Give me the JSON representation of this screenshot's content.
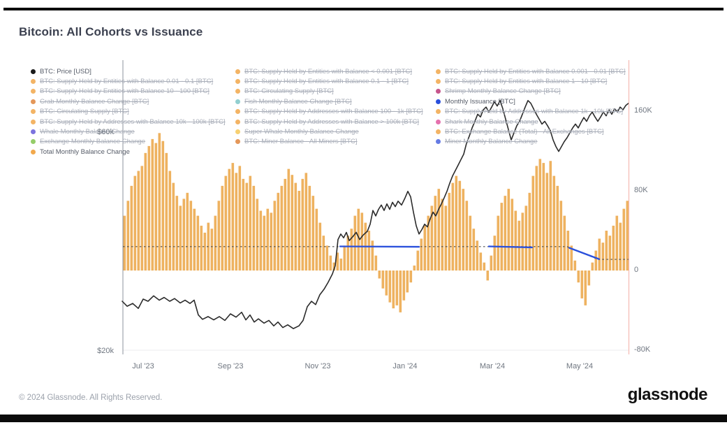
{
  "header": {
    "title": "Bitcoin: All Cohorts vs Issuance"
  },
  "footer": {
    "copyright": "© 2024 Glassnode. All Rights Reserved.",
    "brand": "glassnode"
  },
  "legend": {
    "columns": [
      {
        "items": [
          {
            "label": "BTC: Price [USD]",
            "color": "#1b1b1b",
            "active": true
          },
          {
            "label": "BTC: Supply Held by Entities with Balance 0.01 - 0.1 [BTC]",
            "color": "#f0a13e",
            "active": false
          },
          {
            "label": "BTC: Supply Held by Entities with Balance 10 - 100 [BTC]",
            "color": "#f0a13e",
            "active": false
          },
          {
            "label": "Crab Monthly Balance Change [BTC]",
            "color": "#dd7d2f",
            "active": false
          },
          {
            "label": "BTC: Circulating Supply [BTC]",
            "color": "#f0a13e",
            "active": false
          },
          {
            "label": "BTC: Supply Held by Addresses with Balance 10k - 100k [BTC]",
            "color": "#f0a13e",
            "active": false
          },
          {
            "label": "Whale Monthly Balance Change",
            "color": "#5b50d6",
            "active": false
          },
          {
            "label": "Exchange Monthly Balance Change",
            "color": "#7bc043",
            "active": false
          },
          {
            "label": "Total Monthly Balance Change",
            "color": "#f2a94d",
            "active": true
          }
        ]
      },
      {
        "items": [
          {
            "label": "BTC: Supply Held by Entities with Balance < 0.001 [BTC]",
            "color": "#f0a13e",
            "active": false
          },
          {
            "label": "BTC: Supply Held by Entities with Balance 0.1 - 1 [BTC]",
            "color": "#f0a13e",
            "active": false
          },
          {
            "label": "BTC: Circulating Supply [BTC]",
            "color": "#f0a13e",
            "active": false
          },
          {
            "label": "Fish Monthly Balance Change [BTC]",
            "color": "#77c3c4",
            "active": false
          },
          {
            "label": "BTC: Supply Held by Addresses with Balance 100 - 1k [BTC]",
            "color": "#f0a13e",
            "active": false
          },
          {
            "label": "BTC: Supply Held by Addresses with Balance > 100k [BTC]",
            "color": "#f0a13e",
            "active": false
          },
          {
            "label": "Super Whale Monthly Balance Change",
            "color": "#f5c44f",
            "active": false
          },
          {
            "label": "BTC: Miner Balance - All Miners [BTC]",
            "color": "#dd7d2f",
            "active": false
          }
        ]
      },
      {
        "items": [
          {
            "label": "BTC: Supply Held by Entities with Balance 0.001 - 0.01 [BTC]",
            "color": "#f0a13e",
            "active": false
          },
          {
            "label": "BTC: Supply Held by Entities with Balance 1 - 10 [BTC]",
            "color": "#f0a13e",
            "active": false
          },
          {
            "label": "Shrimp Monthly Balance Change [BTC]",
            "color": "#b82a6f",
            "active": false
          },
          {
            "label": "Monthly Issuance [BTC]",
            "color": "#2a50dc",
            "active": true
          },
          {
            "label": "BTC: Supply Held by Addresses with Balance 1k - 10k [BTC]",
            "color": "#f0a13e",
            "active": false
          },
          {
            "label": "Shark Monthly Balance Change",
            "color": "#df4d9a",
            "active": false
          },
          {
            "label": "BTC: Exchange Balance (Total) - All Exchanges [BTC]",
            "color": "#f0a13e",
            "active": false
          },
          {
            "label": "Miner Monthly Balance Change",
            "color": "#3f5add",
            "active": false
          }
        ]
      }
    ]
  },
  "chart_data": {
    "type": "mixed",
    "title": "Bitcoin: All Cohorts vs Issuance",
    "x_axis": {
      "tick_labels": [
        "Jul '23",
        "Sep '23",
        "Nov '23",
        "Jan '24",
        "Mar '24",
        "May '24"
      ],
      "grid": false
    },
    "left_axis": {
      "scale": "linear",
      "tick_labels": [
        "$60k",
        "$20k"
      ],
      "tick_values_k_usd": [
        60,
        20
      ]
    },
    "right_axis": {
      "tick_labels": [
        "160K",
        "80K",
        "0",
        "-80K"
      ],
      "tick_values_k_btc": [
        160,
        80,
        0,
        -80
      ]
    },
    "legend_position": "top-overlay",
    "series": [
      {
        "name": "Total Monthly Balance Change",
        "type": "bar",
        "axis": "right",
        "unit": "K BTC",
        "color": "#ecaa4f",
        "values": [
          55,
          70,
          85,
          95,
          100,
          105,
          118,
          125,
          132,
          128,
          138,
          130,
          118,
          100,
          88,
          75,
          65,
          72,
          78,
          70,
          62,
          55,
          45,
          38,
          48,
          42,
          55,
          70,
          85,
          95,
          102,
          108,
          98,
          105,
          92,
          88,
          95,
          85,
          72,
          60,
          55,
          62,
          58,
          70,
          78,
          85,
          92,
          102,
          96,
          88,
          80,
          92,
          98,
          85,
          75,
          62,
          48,
          35,
          25,
          15,
          8,
          18,
          12,
          25,
          35,
          42,
          55,
          62,
          58,
          48,
          40,
          30,
          15,
          -8,
          -18,
          -25,
          -32,
          -38,
          -35,
          -42,
          -30,
          -22,
          -12,
          5,
          20,
          32,
          45,
          55,
          65,
          75,
          82,
          72,
          65,
          78,
          88,
          95,
          90,
          82,
          70,
          55,
          42,
          30,
          18,
          8,
          -10,
          15,
          35,
          55,
          68,
          75,
          82,
          72,
          60,
          50,
          58,
          65,
          78,
          95,
          105,
          112,
          108,
          98,
          110,
          95,
          85,
          70,
          55,
          40,
          25,
          10,
          -12,
          -28,
          -35,
          -15,
          8,
          20,
          32,
          28,
          40,
          35,
          45,
          55,
          48,
          62,
          70
        ]
      },
      {
        "name": "BTC: Price [USD]",
        "type": "line",
        "axis": "left",
        "unit": "K USD",
        "color": "#2b2b2b",
        "points": [
          [
            175,
            29.2
          ],
          [
            182,
            28.3
          ],
          [
            190,
            28.8
          ],
          [
            198,
            27.9
          ],
          [
            205,
            29.6
          ],
          [
            212,
            29.2
          ],
          [
            220,
            30.2
          ],
          [
            228,
            29.4
          ],
          [
            235,
            29.9
          ],
          [
            243,
            29.2
          ],
          [
            250,
            29.7
          ],
          [
            258,
            28.9
          ],
          [
            265,
            29.4
          ],
          [
            272,
            28.8
          ],
          [
            278,
            29.4
          ],
          [
            284,
            26.7
          ],
          [
            290,
            25.9
          ],
          [
            298,
            26.4
          ],
          [
            306,
            25.8
          ],
          [
            314,
            26.4
          ],
          [
            322,
            25.7
          ],
          [
            330,
            26.9
          ],
          [
            338,
            26.3
          ],
          [
            346,
            27.2
          ],
          [
            352,
            25.8
          ],
          [
            358,
            26.7
          ],
          [
            364,
            25.4
          ],
          [
            370,
            26.0
          ],
          [
            378,
            25.2
          ],
          [
            385,
            25.7
          ],
          [
            392,
            24.7
          ],
          [
            398,
            25.4
          ],
          [
            405,
            24.4
          ],
          [
            412,
            24.9
          ],
          [
            420,
            24.2
          ],
          [
            428,
            24.7
          ],
          [
            434,
            25.7
          ],
          [
            440,
            28.2
          ],
          [
            446,
            29.2
          ],
          [
            452,
            28.6
          ],
          [
            458,
            30.4
          ],
          [
            464,
            31.4
          ],
          [
            470,
            32.7
          ],
          [
            476,
            34.2
          ],
          [
            480,
            35.7
          ],
          [
            484,
            40.5
          ],
          [
            488,
            41.5
          ],
          [
            492,
            40.8
          ],
          [
            496,
            41.8
          ],
          [
            500,
            40.3
          ],
          [
            505,
            41.0
          ],
          [
            510,
            41.8
          ],
          [
            515,
            40.5
          ],
          [
            520,
            41.3
          ],
          [
            526,
            42.0
          ],
          [
            530,
            43.3
          ],
          [
            534,
            45.8
          ],
          [
            538,
            44.8
          ],
          [
            542,
            46.0
          ],
          [
            546,
            46.8
          ],
          [
            550,
            45.8
          ],
          [
            554,
            47.0
          ],
          [
            558,
            46.0
          ],
          [
            562,
            47.3
          ],
          [
            566,
            46.5
          ],
          [
            570,
            47.5
          ],
          [
            575,
            46.8
          ],
          [
            580,
            48.1
          ],
          [
            584,
            49.3
          ],
          [
            588,
            48.3
          ],
          [
            592,
            45.5
          ],
          [
            596,
            43.0
          ],
          [
            600,
            41.5
          ],
          [
            604,
            42.3
          ],
          [
            608,
            43.3
          ],
          [
            612,
            42.8
          ],
          [
            616,
            44.3
          ],
          [
            620,
            45.5
          ],
          [
            624,
            44.8
          ],
          [
            628,
            46.0
          ],
          [
            632,
            47.0
          ],
          [
            636,
            48.1
          ],
          [
            640,
            49.3
          ],
          [
            644,
            50.8
          ],
          [
            648,
            52.1
          ],
          [
            652,
            53.1
          ],
          [
            656,
            54.1
          ],
          [
            660,
            55.1
          ],
          [
            664,
            56.1
          ],
          [
            668,
            58.1
          ],
          [
            672,
            59.4
          ],
          [
            676,
            60.9
          ],
          [
            680,
            62.1
          ],
          [
            684,
            63.4
          ],
          [
            688,
            62.9
          ],
          [
            692,
            64.2
          ],
          [
            696,
            64.7
          ],
          [
            700,
            63.8
          ],
          [
            704,
            64.7
          ],
          [
            708,
            65.7
          ],
          [
            712,
            64.9
          ],
          [
            716,
            65.9
          ],
          [
            720,
            64.4
          ],
          [
            724,
            62.5
          ],
          [
            728,
            60.6
          ],
          [
            732,
            58.7
          ],
          [
            736,
            60.0
          ],
          [
            740,
            61.3
          ],
          [
            744,
            62.1
          ],
          [
            748,
            63.4
          ],
          [
            752,
            64.7
          ],
          [
            756,
            65.9
          ],
          [
            760,
            65.4
          ],
          [
            764,
            64.4
          ],
          [
            768,
            63.4
          ],
          [
            772,
            62.5
          ],
          [
            776,
            61.6
          ],
          [
            780,
            62.1
          ],
          [
            784,
            61.3
          ],
          [
            788,
            60.4
          ],
          [
            792,
            58.7
          ],
          [
            796,
            57.5
          ],
          [
            800,
            56.6
          ],
          [
            804,
            57.5
          ],
          [
            808,
            58.4
          ],
          [
            812,
            59.1
          ],
          [
            816,
            60.0
          ],
          [
            820,
            60.9
          ],
          [
            824,
            61.6
          ],
          [
            828,
            60.9
          ],
          [
            832,
            61.9
          ],
          [
            836,
            62.8
          ],
          [
            840,
            62.1
          ],
          [
            844,
            63.1
          ],
          [
            848,
            63.8
          ],
          [
            852,
            62.9
          ],
          [
            856,
            62.1
          ],
          [
            860,
            62.9
          ],
          [
            864,
            63.8
          ],
          [
            868,
            63.1
          ],
          [
            872,
            64.2
          ],
          [
            876,
            63.4
          ],
          [
            880,
            64.4
          ],
          [
            884,
            63.8
          ],
          [
            888,
            64.7
          ],
          [
            892,
            64.2
          ],
          [
            896,
            65.0
          ],
          [
            900,
            65.4
          ]
        ]
      },
      {
        "name": "Monthly Issuance [BTC]",
        "type": "line",
        "axis": "right",
        "unit": "K BTC",
        "color": "#2a50dc",
        "baseline_color": "#4a4a4a",
        "style_note": "dark dashed baseline with solid blue overlay, steps down after April 2024 halving",
        "baseline_points": [
          [
            176,
            24
          ],
          [
            812,
            24
          ],
          [
            856,
            11.2
          ],
          [
            900,
            11.2
          ]
        ],
        "solid_segments": [
          [
            [
              487,
              24.2
            ],
            [
              600,
              23.8
            ]
          ],
          [
            [
              700,
              24.2
            ],
            [
              762,
              23.2
            ]
          ],
          [
            [
              815,
              22.8
            ],
            [
              858,
              11.4
            ]
          ]
        ]
      }
    ]
  }
}
